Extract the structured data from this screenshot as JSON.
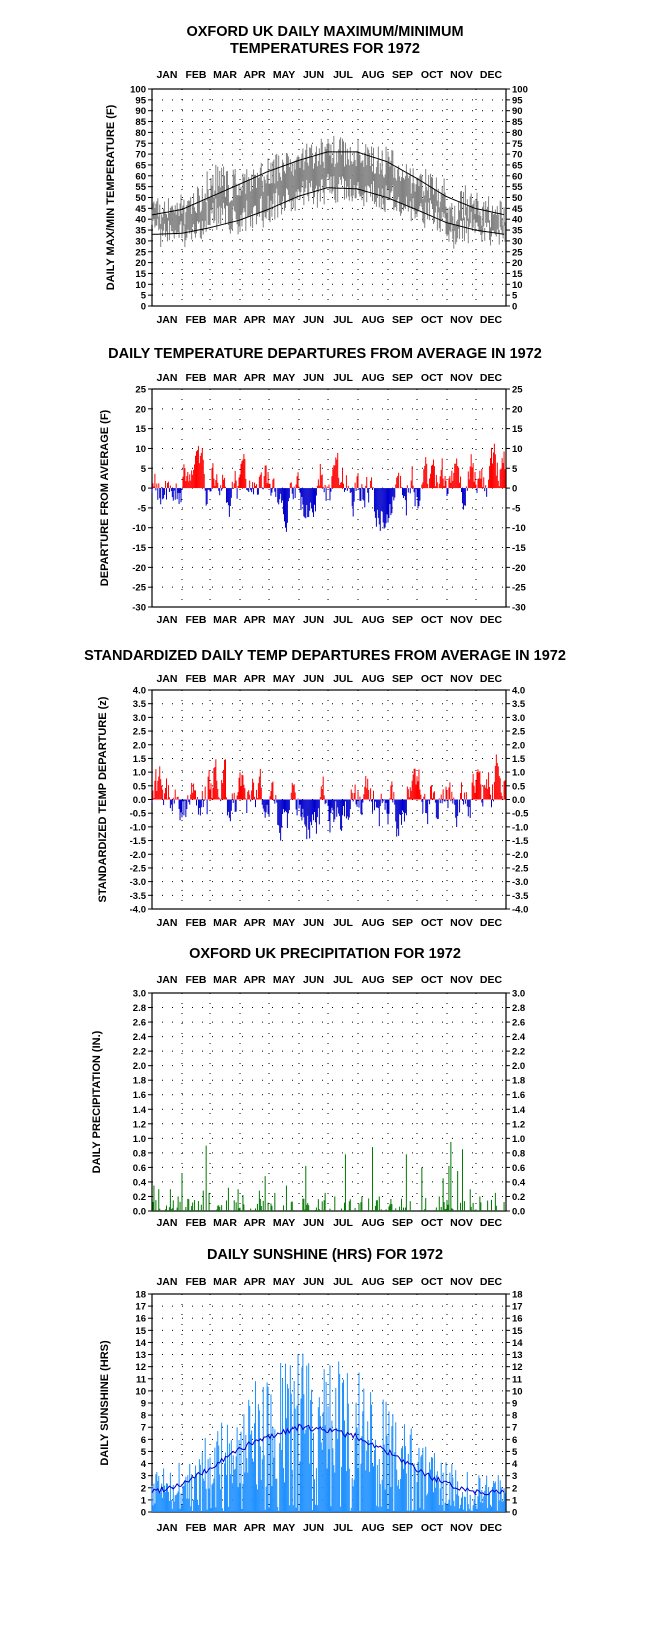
{
  "colors": {
    "range": "#808080",
    "normal": "#000000",
    "positive": "#ff0000",
    "negative": "#0000cc",
    "precip": "#007700",
    "sunshine": "#1e90ff",
    "sunshine_avg": "#0000cc"
  },
  "months": [
    "JAN",
    "FEB",
    "MAR",
    "APR",
    "MAY",
    "JUN",
    "JUL",
    "AUG",
    "SEP",
    "OCT",
    "NOV",
    "DEC"
  ],
  "chart_data": [
    {
      "id": "temps",
      "type": "line",
      "title_lines": [
        "OXFORD UK DAILY MAXIMUM/MINIMUM",
        "TEMPERATURES FOR 1972"
      ],
      "ylabel": "DAILY MAX/MIN TEMPERATURE (F)",
      "ylim": [
        0,
        100
      ],
      "yticks": [
        "0",
        "5",
        "10",
        "15",
        "20",
        "25",
        "30",
        "35",
        "40",
        "45",
        "50",
        "55",
        "60",
        "65",
        "70",
        "75",
        "80",
        "85",
        "90",
        "95",
        "100"
      ],
      "grid": true,
      "series": [
        {
          "role": "daily-range",
          "note": "daily max/min bars (grey)"
        },
        {
          "role": "normal-max",
          "knots": [
            [
              1,
              42
            ],
            [
              32,
              44.5
            ],
            [
              60,
              50
            ],
            [
              91,
              56
            ],
            [
              121,
              62
            ],
            [
              152,
              67
            ],
            [
              182,
              71
            ],
            [
              213,
              71
            ],
            [
              244,
              66.5
            ],
            [
              274,
              59
            ],
            [
              305,
              50.5
            ],
            [
              335,
              45
            ],
            [
              366,
              42
            ]
          ]
        },
        {
          "role": "normal-min",
          "knots": [
            [
              1,
              33
            ],
            [
              32,
              33.5
            ],
            [
              60,
              36
            ],
            [
              91,
              39.5
            ],
            [
              121,
              44.5
            ],
            [
              152,
              50.5
            ],
            [
              182,
              54.5
            ],
            [
              213,
              54
            ],
            [
              244,
              50
            ],
            [
              274,
              44.5
            ],
            [
              305,
              38.5
            ],
            [
              335,
              35
            ],
            [
              366,
              33
            ]
          ]
        }
      ]
    },
    {
      "id": "departures",
      "type": "bar",
      "title_lines": [
        "DAILY TEMPERATURE DEPARTURES FROM AVERAGE IN 1972"
      ],
      "ylabel": "DEPARTURE FROM AVERAGE (F)",
      "ylim": [
        -30,
        25
      ],
      "yticks": [
        "-30",
        "-25",
        "-20",
        "-15",
        "-10",
        "-5",
        "0",
        "5",
        "10",
        "15",
        "20",
        "25"
      ],
      "grid": true
    },
    {
      "id": "standardized",
      "type": "bar",
      "title_lines": [
        "STANDARDIZED DAILY TEMP DEPARTURES FROM AVERAGE IN 1972"
      ],
      "ylabel": "STANDARDIZED TEMP DEPARTURE (z)",
      "ylim": [
        -4,
        4
      ],
      "yticks": [
        "-4.0",
        "-3.5",
        "-3.0",
        "-2.5",
        "-2.0",
        "-1.5",
        "-1.0",
        "-0.5",
        "0.0",
        "0.5",
        "1.0",
        "1.5",
        "2.0",
        "2.5",
        "3.0",
        "3.5",
        "4.0"
      ],
      "grid": true
    },
    {
      "id": "precip",
      "type": "bar",
      "title_lines": [
        "OXFORD UK PRECIPITATION FOR 1972"
      ],
      "ylabel": "DAILY PRECIPITATION (IN.)",
      "ylim": [
        0,
        3
      ],
      "yticks": [
        "0.0",
        "0.2",
        "0.4",
        "0.6",
        "0.8",
        "1.0",
        "1.2",
        "1.4",
        "1.6",
        "1.8",
        "2.0",
        "2.2",
        "2.4",
        "2.6",
        "2.8",
        "3.0"
      ],
      "grid": true,
      "peaks": [
        [
          3,
          0.35
        ],
        [
          8,
          0.3
        ],
        [
          20,
          0.3
        ],
        [
          28,
          0.2
        ],
        [
          32,
          0.52
        ],
        [
          45,
          0.15
        ],
        [
          54,
          0.28
        ],
        [
          57,
          0.9
        ],
        [
          60,
          0.25
        ],
        [
          80,
          0.32
        ],
        [
          90,
          0.3
        ],
        [
          95,
          0.22
        ],
        [
          112,
          0.28
        ],
        [
          118,
          0.48
        ],
        [
          128,
          0.25
        ],
        [
          140,
          0.35
        ],
        [
          160,
          0.62
        ],
        [
          180,
          0.25
        ],
        [
          190,
          0.2
        ],
        [
          201,
          0.78
        ],
        [
          218,
          0.2
        ],
        [
          229,
          0.88
        ],
        [
          236,
          0.2
        ],
        [
          264,
          0.78
        ],
        [
          280,
          0.6
        ],
        [
          298,
          0.2
        ],
        [
          302,
          0.45
        ],
        [
          308,
          0.62
        ],
        [
          310,
          0.95
        ],
        [
          317,
          0.55
        ],
        [
          322,
          0.85
        ],
        [
          330,
          0.3
        ],
        [
          340,
          0.2
        ],
        [
          356,
          0.25
        ]
      ]
    },
    {
      "id": "sunshine",
      "type": "bar",
      "title_lines": [
        "DAILY SUNSHINE (HRS) FOR 1972"
      ],
      "ylabel": "DAILY SUNSHINE (HRS)",
      "ylim": [
        0,
        18
      ],
      "yticks": [
        "0",
        "1",
        "2",
        "3",
        "4",
        "5",
        "6",
        "7",
        "8",
        "9",
        "10",
        "11",
        "12",
        "13",
        "14",
        "15",
        "16",
        "17",
        "18"
      ],
      "grid": true,
      "series": [
        {
          "role": "daily-sunshine",
          "note": "daily sunshine bars"
        },
        {
          "role": "normal-sunshine",
          "knots": [
            [
              1,
              1.7
            ],
            [
              32,
              2.3
            ],
            [
              60,
              3.5
            ],
            [
              91,
              5.2
            ],
            [
              121,
              6.2
            ],
            [
              152,
              7
            ],
            [
              182,
              6.8
            ],
            [
              213,
              6.2
            ],
            [
              244,
              5
            ],
            [
              274,
              3.5
            ],
            [
              305,
              2.3
            ],
            [
              335,
              1.7
            ],
            [
              366,
              1.6
            ]
          ]
        }
      ]
    }
  ]
}
